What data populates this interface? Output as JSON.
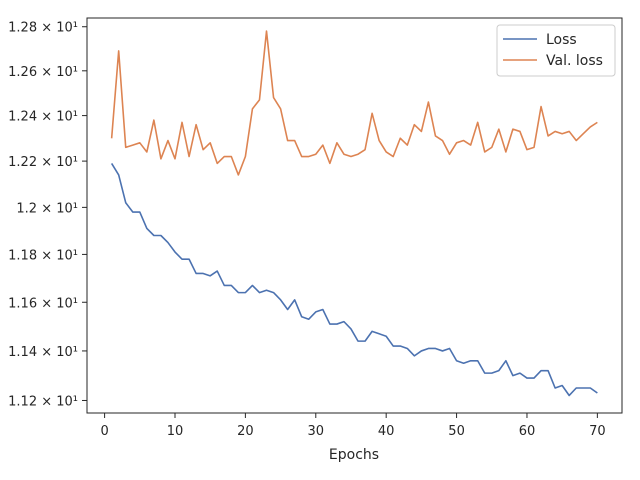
{
  "chart_data": {
    "type": "line",
    "xlabel": "Epochs",
    "ylabel": "",
    "xlim": [
      -2.5,
      73.5
    ],
    "ylim": [
      11.15,
      12.84
    ],
    "log_y": true,
    "grid": false,
    "legend_position": "top-right",
    "x_ticks": [
      0,
      10,
      20,
      30,
      40,
      50,
      60,
      70
    ],
    "x_tick_labels": [
      "0",
      "10",
      "20",
      "30",
      "40",
      "50",
      "60",
      "70"
    ],
    "y_ticks": [
      11.2,
      11.4,
      11.6,
      11.8,
      12.0,
      12.2,
      12.4,
      12.6,
      12.8
    ],
    "y_tick_labels": [
      "1.12 × 10¹",
      "1.14 × 10¹",
      "1.16 × 10¹",
      "1.18 × 10¹",
      "1.2 × 10¹",
      "1.22 × 10¹",
      "1.24 × 10¹",
      "1.26 × 10¹",
      "1.28 × 10¹"
    ],
    "x": [
      1,
      2,
      3,
      4,
      5,
      6,
      7,
      8,
      9,
      10,
      11,
      12,
      13,
      14,
      15,
      16,
      17,
      18,
      19,
      20,
      21,
      22,
      23,
      24,
      25,
      26,
      27,
      28,
      29,
      30,
      31,
      32,
      33,
      34,
      35,
      36,
      37,
      38,
      39,
      40,
      41,
      42,
      43,
      44,
      45,
      46,
      47,
      48,
      49,
      50,
      51,
      52,
      53,
      54,
      55,
      56,
      57,
      58,
      59,
      60,
      61,
      62,
      63,
      64,
      65,
      66,
      67,
      68,
      69,
      70
    ],
    "series": [
      {
        "name": "Loss",
        "color": "#4c72b0",
        "values": [
          12.19,
          12.14,
          12.02,
          11.98,
          11.98,
          11.91,
          11.88,
          11.88,
          11.85,
          11.81,
          11.78,
          11.78,
          11.72,
          11.72,
          11.71,
          11.73,
          11.67,
          11.67,
          11.64,
          11.64,
          11.67,
          11.64,
          11.65,
          11.64,
          11.61,
          11.57,
          11.61,
          11.54,
          11.53,
          11.56,
          11.57,
          11.51,
          11.51,
          11.52,
          11.49,
          11.44,
          11.44,
          11.48,
          11.47,
          11.46,
          11.42,
          11.42,
          11.41,
          11.38,
          11.4,
          11.41,
          11.41,
          11.4,
          11.41,
          11.36,
          11.35,
          11.36,
          11.36,
          11.31,
          11.31,
          11.32,
          11.36,
          11.3,
          11.31,
          11.29,
          11.29,
          11.32,
          11.32,
          11.25,
          11.26,
          11.22,
          11.25,
          11.25,
          11.25,
          11.23
        ]
      },
      {
        "name": "Val. loss",
        "color": "#dd8452",
        "values": [
          12.3,
          12.69,
          12.26,
          12.27,
          12.28,
          12.24,
          12.38,
          12.21,
          12.29,
          12.21,
          12.37,
          12.22,
          12.36,
          12.25,
          12.28,
          12.19,
          12.22,
          12.22,
          12.14,
          12.22,
          12.43,
          12.47,
          12.78,
          12.48,
          12.43,
          12.29,
          12.29,
          12.22,
          12.22,
          12.23,
          12.27,
          12.19,
          12.28,
          12.23,
          12.22,
          12.23,
          12.25,
          12.41,
          12.29,
          12.24,
          12.22,
          12.3,
          12.27,
          12.36,
          12.33,
          12.46,
          12.31,
          12.29,
          12.23,
          12.28,
          12.29,
          12.27,
          12.37,
          12.24,
          12.26,
          12.34,
          12.24,
          12.34,
          12.33,
          12.25,
          12.26,
          12.44,
          12.31,
          12.33,
          12.32,
          12.33,
          12.29,
          12.32,
          12.35,
          12.37
        ]
      }
    ]
  }
}
